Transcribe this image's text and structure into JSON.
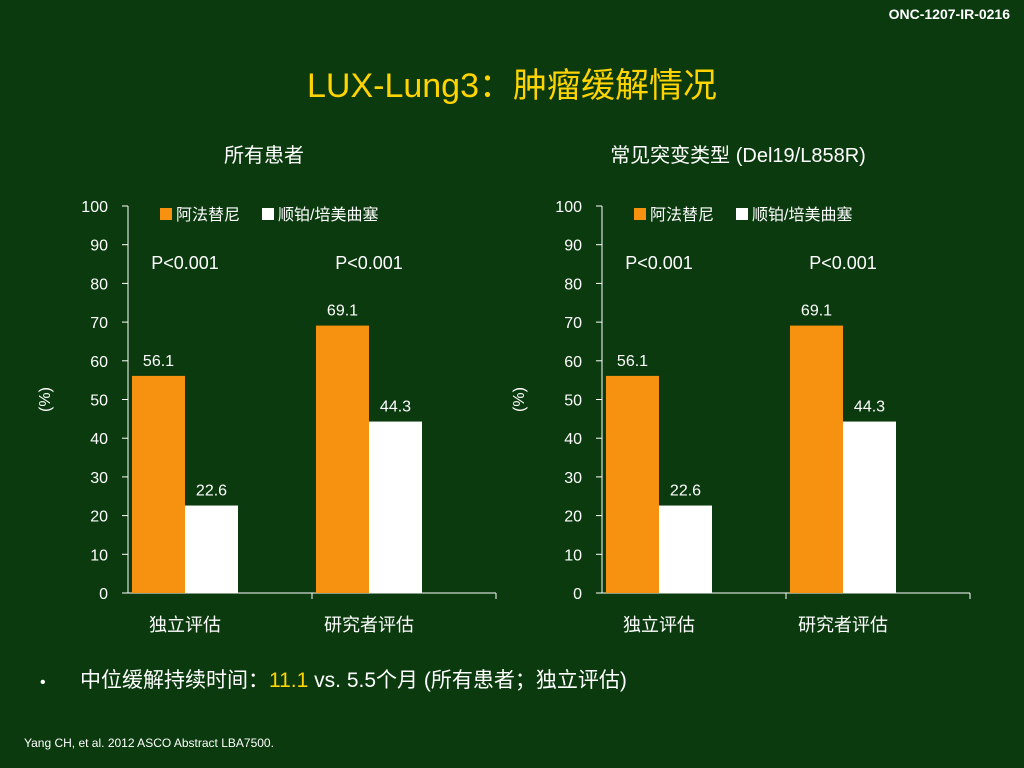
{
  "slide": {
    "code": "ONC-1207-IR-0216",
    "title": "LUX-Lung3：肿瘤缓解情况",
    "bullet_prefix": "中位缓解持续时间：",
    "bullet_highlight": "11.1",
    "bullet_suffix": " vs. 5.5个月 (所有患者；独立评估)",
    "footer": "Yang CH, et al. 2012 ASCO Abstract LBA7500."
  },
  "colors": {
    "background": "#0b3a0e",
    "afatinib": "#f6920f",
    "chemo": "#ffffff",
    "title": "#ffd400"
  },
  "chart_data": [
    {
      "type": "bar",
      "title": "所有患者",
      "ylabel": "(%)",
      "ylim": [
        0,
        100
      ],
      "yticks": [
        0,
        10,
        20,
        30,
        40,
        50,
        60,
        70,
        80,
        90,
        100
      ],
      "categories": [
        "独立评估",
        "研究者评估"
      ],
      "series": [
        {
          "name": "阿法替尼",
          "values": [
            56.1,
            69.1
          ]
        },
        {
          "name": "顺铂/培美曲塞",
          "values": [
            22.6,
            44.3
          ]
        }
      ],
      "annotations": [
        "P<0.001",
        "P<0.001"
      ],
      "legend": "top"
    },
    {
      "type": "bar",
      "title": "常见突变类型 (Del19/L858R)",
      "ylabel": "(%)",
      "ylim": [
        0,
        100
      ],
      "yticks": [
        0,
        10,
        20,
        30,
        40,
        50,
        60,
        70,
        80,
        90,
        100
      ],
      "categories": [
        "独立评估",
        "研究者评估"
      ],
      "series": [
        {
          "name": "阿法替尼",
          "values": [
            56.1,
            69.1
          ]
        },
        {
          "name": "顺铂/培美曲塞",
          "values": [
            22.6,
            44.3
          ]
        }
      ],
      "annotations": [
        "P<0.001",
        "P<0.001"
      ],
      "legend": "top"
    }
  ]
}
